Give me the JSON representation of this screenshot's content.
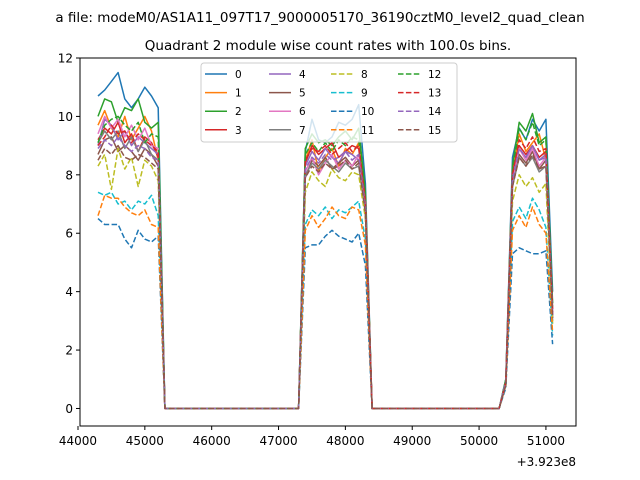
{
  "chart_data": {
    "type": "line",
    "suptitle": "a file: modeM0/AS1A11_097T17_9000005170_36190cztM0_level2_quad_clean",
    "title": "Quadrant 2 module wise count rates with 100.0s bins.",
    "xlabel": "",
    "ylabel": "",
    "xlim": [
      44030,
      51450
    ],
    "ylim": [
      -0.6,
      12.0
    ],
    "xticks": [
      44000,
      45000,
      46000,
      47000,
      48000,
      49000,
      50000,
      51000
    ],
    "xtick_labels": [
      "44000",
      "45000",
      "46000",
      "47000",
      "48000",
      "49000",
      "50000",
      "51000"
    ],
    "yticks": [
      0,
      2,
      4,
      6,
      8,
      10,
      12
    ],
    "ytick_labels": [
      "0",
      "2",
      "4",
      "6",
      "8",
      "10",
      "12"
    ],
    "x_offset_label": "+3.923e8",
    "grid": false,
    "legend_position": "top-center",
    "legend_columns": 4,
    "x": [
      44300,
      44400,
      44500,
      44600,
      44700,
      44800,
      44900,
      45000,
      45100,
      45200,
      45300,
      45400,
      47300,
      47400,
      47500,
      47600,
      47700,
      47800,
      47900,
      48000,
      48100,
      48200,
      48300,
      48400,
      48500,
      48600,
      50300,
      50400,
      50500,
      50600,
      50700,
      50800,
      50900,
      51000,
      51100
    ],
    "series": [
      {
        "name": "0",
        "color": "#1f77b4",
        "dash": "solid",
        "values": [
          10.7,
          10.9,
          11.2,
          11.5,
          10.6,
          10.3,
          10.6,
          11.0,
          10.7,
          10.3,
          0,
          0,
          0,
          8.8,
          9.9,
          9.2,
          9.1,
          9.3,
          9.8,
          9.7,
          9.9,
          10.4,
          7.7,
          0,
          0,
          0,
          0,
          1.0,
          8.6,
          9.6,
          9.2,
          9.9,
          9.5,
          9.9,
          4.0
        ]
      },
      {
        "name": "1",
        "color": "#ff7f0e",
        "dash": "solid",
        "values": [
          9.7,
          10.2,
          9.6,
          9.3,
          10.0,
          9.2,
          9.6,
          10.0,
          9.5,
          8.5,
          0,
          0,
          0,
          8.5,
          9.2,
          8.1,
          8.6,
          8.9,
          8.3,
          8.9,
          8.7,
          9.1,
          7.2,
          0,
          0,
          0,
          0,
          0.9,
          8.0,
          9.4,
          8.8,
          9.1,
          9.4,
          8.5,
          3.2
        ]
      },
      {
        "name": "2",
        "color": "#2ca02c",
        "dash": "solid",
        "values": [
          10.0,
          10.6,
          10.5,
          9.8,
          10.3,
          10.2,
          10.6,
          9.8,
          9.6,
          9.8,
          0,
          0,
          0,
          8.9,
          9.4,
          9.1,
          9.2,
          9.0,
          9.3,
          9.5,
          9.2,
          9.6,
          7.4,
          0,
          0,
          0,
          0,
          1.0,
          8.3,
          9.8,
          9.5,
          10.1,
          9.1,
          9.3,
          3.6
        ]
      },
      {
        "name": "3",
        "color": "#d62728",
        "dash": "solid",
        "values": [
          9.2,
          9.6,
          9.4,
          9.8,
          9.1,
          9.4,
          8.8,
          9.3,
          9.1,
          8.6,
          0,
          0,
          0,
          8.4,
          9.0,
          8.7,
          8.9,
          9.1,
          8.6,
          8.8,
          9.0,
          8.9,
          7.1,
          0,
          0,
          0,
          0,
          0.9,
          8.1,
          9.0,
          8.7,
          9.0,
          8.6,
          8.8,
          3.4
        ]
      },
      {
        "name": "4",
        "color": "#9467bd",
        "dash": "solid",
        "values": [
          9.0,
          9.9,
          9.7,
          9.2,
          9.5,
          9.0,
          9.3,
          9.1,
          8.9,
          8.7,
          0,
          0,
          0,
          8.3,
          8.8,
          8.5,
          8.9,
          8.6,
          8.4,
          8.8,
          8.7,
          8.5,
          6.9,
          0,
          0,
          0,
          0,
          0.9,
          7.9,
          8.9,
          8.6,
          9.0,
          8.5,
          8.7,
          3.2
        ]
      },
      {
        "name": "5",
        "color": "#8c564b",
        "dash": "solid",
        "values": [
          8.7,
          9.2,
          9.3,
          8.8,
          9.0,
          8.8,
          8.5,
          8.9,
          8.7,
          8.3,
          0,
          0,
          0,
          7.9,
          8.5,
          8.3,
          8.6,
          8.2,
          8.4,
          8.6,
          8.3,
          8.5,
          6.8,
          0,
          0,
          0,
          0,
          0.9,
          7.7,
          8.7,
          8.4,
          8.8,
          8.2,
          8.5,
          3.1
        ]
      },
      {
        "name": "6",
        "color": "#e377c2",
        "dash": "solid",
        "values": [
          9.4,
          10.0,
          9.6,
          9.9,
          9.3,
          9.7,
          9.2,
          9.6,
          9.0,
          8.9,
          0,
          0,
          0,
          8.1,
          8.6,
          8.0,
          8.4,
          8.7,
          8.2,
          8.5,
          8.3,
          8.7,
          6.9,
          0,
          0,
          0,
          0,
          0.9,
          7.8,
          8.9,
          8.5,
          8.9,
          8.3,
          8.6,
          3.2
        ]
      },
      {
        "name": "7",
        "color": "#7f7f7f",
        "dash": "solid",
        "values": [
          9.1,
          9.5,
          9.2,
          9.5,
          8.9,
          9.3,
          8.8,
          9.2,
          8.7,
          8.5,
          0,
          0,
          0,
          8.0,
          8.4,
          8.2,
          8.5,
          8.3,
          8.1,
          8.4,
          8.2,
          8.3,
          6.7,
          0,
          0,
          0,
          0,
          0.8,
          7.6,
          8.6,
          8.3,
          8.6,
          8.1,
          8.3,
          3.0
        ]
      },
      {
        "name": "8",
        "color": "#bcbd22",
        "dash": "dashed",
        "values": [
          8.3,
          8.7,
          7.5,
          8.9,
          8.2,
          8.6,
          7.6,
          8.5,
          8.3,
          7.8,
          0,
          0,
          0,
          7.4,
          8.1,
          7.8,
          7.6,
          8.2,
          7.9,
          7.8,
          8.1,
          8.0,
          6.5,
          0,
          0,
          0,
          0,
          0.8,
          7.1,
          8.0,
          7.6,
          7.9,
          7.4,
          7.7,
          2.9
        ]
      },
      {
        "name": "9",
        "color": "#17becf",
        "dash": "dashed",
        "values": [
          7.4,
          7.3,
          7.4,
          7.0,
          7.1,
          6.8,
          7.1,
          7.0,
          7.3,
          6.6,
          0,
          0,
          0,
          6.3,
          6.8,
          6.6,
          6.9,
          6.5,
          6.8,
          6.7,
          6.9,
          7.1,
          5.8,
          0,
          0,
          0,
          0,
          0.8,
          6.4,
          6.9,
          6.5,
          7.2,
          6.8,
          6.2,
          2.5
        ]
      },
      {
        "name": "10",
        "color": "#1f77b4",
        "dash": "dashed",
        "values": [
          6.5,
          6.3,
          6.3,
          6.3,
          5.8,
          5.5,
          6.1,
          5.8,
          5.7,
          5.9,
          0,
          0,
          0,
          5.5,
          5.6,
          5.6,
          5.9,
          6.1,
          5.9,
          5.8,
          5.7,
          6.0,
          4.9,
          0,
          0,
          0,
          0,
          0.7,
          5.3,
          5.5,
          5.4,
          5.3,
          5.3,
          5.4,
          2.2
        ]
      },
      {
        "name": "11",
        "color": "#ff7f0e",
        "dash": "dashed",
        "values": [
          6.6,
          7.3,
          7.2,
          7.2,
          6.9,
          6.7,
          6.6,
          6.8,
          6.3,
          6.2,
          0,
          0,
          0,
          6.1,
          6.6,
          6.2,
          6.5,
          6.9,
          6.6,
          6.5,
          6.9,
          6.8,
          5.6,
          0,
          0,
          0,
          0,
          0.8,
          6.1,
          6.6,
          6.2,
          6.9,
          6.3,
          6.0,
          2.6
        ]
      },
      {
        "name": "12",
        "color": "#2ca02c",
        "dash": "dashed",
        "values": [
          9.1,
          9.7,
          9.9,
          10.0,
          9.7,
          9.5,
          9.8,
          9.1,
          9.4,
          9.3,
          0,
          0,
          0,
          8.7,
          9.1,
          8.8,
          9.1,
          8.8,
          9.2,
          9.0,
          9.3,
          9.2,
          7.3,
          0,
          0,
          0,
          0,
          0.9,
          8.1,
          9.6,
          9.2,
          9.8,
          9.0,
          9.2,
          3.5
        ]
      },
      {
        "name": "13",
        "color": "#d62728",
        "dash": "dashed",
        "values": [
          9.0,
          9.3,
          9.7,
          9.4,
          9.5,
          9.1,
          9.4,
          9.2,
          9.0,
          8.8,
          0,
          0,
          0,
          8.5,
          8.9,
          8.8,
          9.0,
          8.7,
          8.9,
          9.1,
          8.8,
          9.0,
          7.1,
          0,
          0,
          0,
          0,
          0.9,
          8.0,
          9.2,
          8.9,
          9.3,
          8.8,
          8.9,
          3.3
        ]
      },
      {
        "name": "14",
        "color": "#9467bd",
        "dash": "dashed",
        "values": [
          8.9,
          9.2,
          9.0,
          9.3,
          9.0,
          8.8,
          9.0,
          8.9,
          8.6,
          8.5,
          0,
          0,
          0,
          8.2,
          8.6,
          8.4,
          8.7,
          8.5,
          8.6,
          8.8,
          8.5,
          8.7,
          6.9,
          0,
          0,
          0,
          0,
          0.9,
          7.8,
          8.9,
          8.6,
          9.0,
          8.5,
          8.6,
          3.2
        ]
      },
      {
        "name": "15",
        "color": "#8c564b",
        "dash": "dashed",
        "values": [
          8.5,
          8.9,
          8.7,
          9.0,
          8.6,
          8.5,
          8.7,
          8.6,
          8.4,
          8.2,
          0,
          0,
          0,
          7.9,
          8.3,
          8.1,
          8.4,
          8.2,
          8.3,
          8.5,
          8.2,
          8.4,
          6.7,
          0,
          0,
          0,
          0,
          0.8,
          7.6,
          8.6,
          8.3,
          8.7,
          8.2,
          8.3,
          3.1
        ]
      }
    ]
  }
}
